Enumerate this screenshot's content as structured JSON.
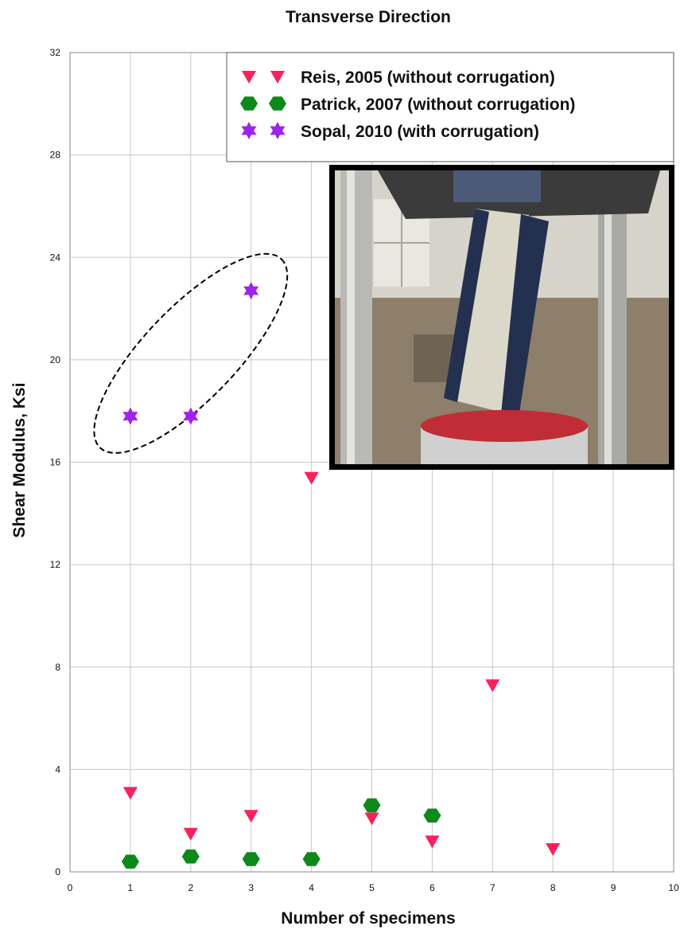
{
  "chart_data": {
    "type": "scatter",
    "title": "Transverse Direction",
    "xlabel": "Number of specimens",
    "ylabel": "Shear Modulus, Ksi",
    "xlim": [
      0,
      10
    ],
    "ylim": [
      0,
      32
    ],
    "xticks": [
      0,
      1,
      2,
      3,
      4,
      5,
      6,
      7,
      8,
      9,
      10
    ],
    "yticks": [
      0,
      4,
      8,
      12,
      16,
      20,
      24,
      28,
      32
    ],
    "grid": true,
    "legend_position": "top-right",
    "series": [
      {
        "name": "Reis, 2005 (without corrugation)",
        "marker": "triangle-down",
        "color": "#ff1f5a",
        "points": [
          [
            1,
            3.1
          ],
          [
            2,
            1.5
          ],
          [
            3,
            2.2
          ],
          [
            4,
            15.4
          ],
          [
            5,
            2.1
          ],
          [
            6,
            1.2
          ],
          [
            7,
            7.3
          ],
          [
            8,
            0.9
          ]
        ]
      },
      {
        "name": "Patrick, 2007 (without corrugation)",
        "marker": "hexagon",
        "color": "#0b8a1a",
        "points": [
          [
            1,
            0.4
          ],
          [
            2,
            0.6
          ],
          [
            3,
            0.5
          ],
          [
            4,
            0.5
          ],
          [
            5,
            2.6
          ],
          [
            6,
            2.2
          ]
        ]
      },
      {
        "name": "Sopal, 2010 (with corrugation)",
        "marker": "star",
        "color": "#a020f0",
        "points": [
          [
            1,
            17.8
          ],
          [
            2,
            17.8
          ],
          [
            3,
            22.7
          ]
        ]
      }
    ],
    "annotations": [
      {
        "type": "dashed-ellipse",
        "encloses_series": "Sopal, 2010 (with corrugation)"
      },
      {
        "type": "photo-inset",
        "depicts": "specimen in testing machine"
      }
    ]
  }
}
